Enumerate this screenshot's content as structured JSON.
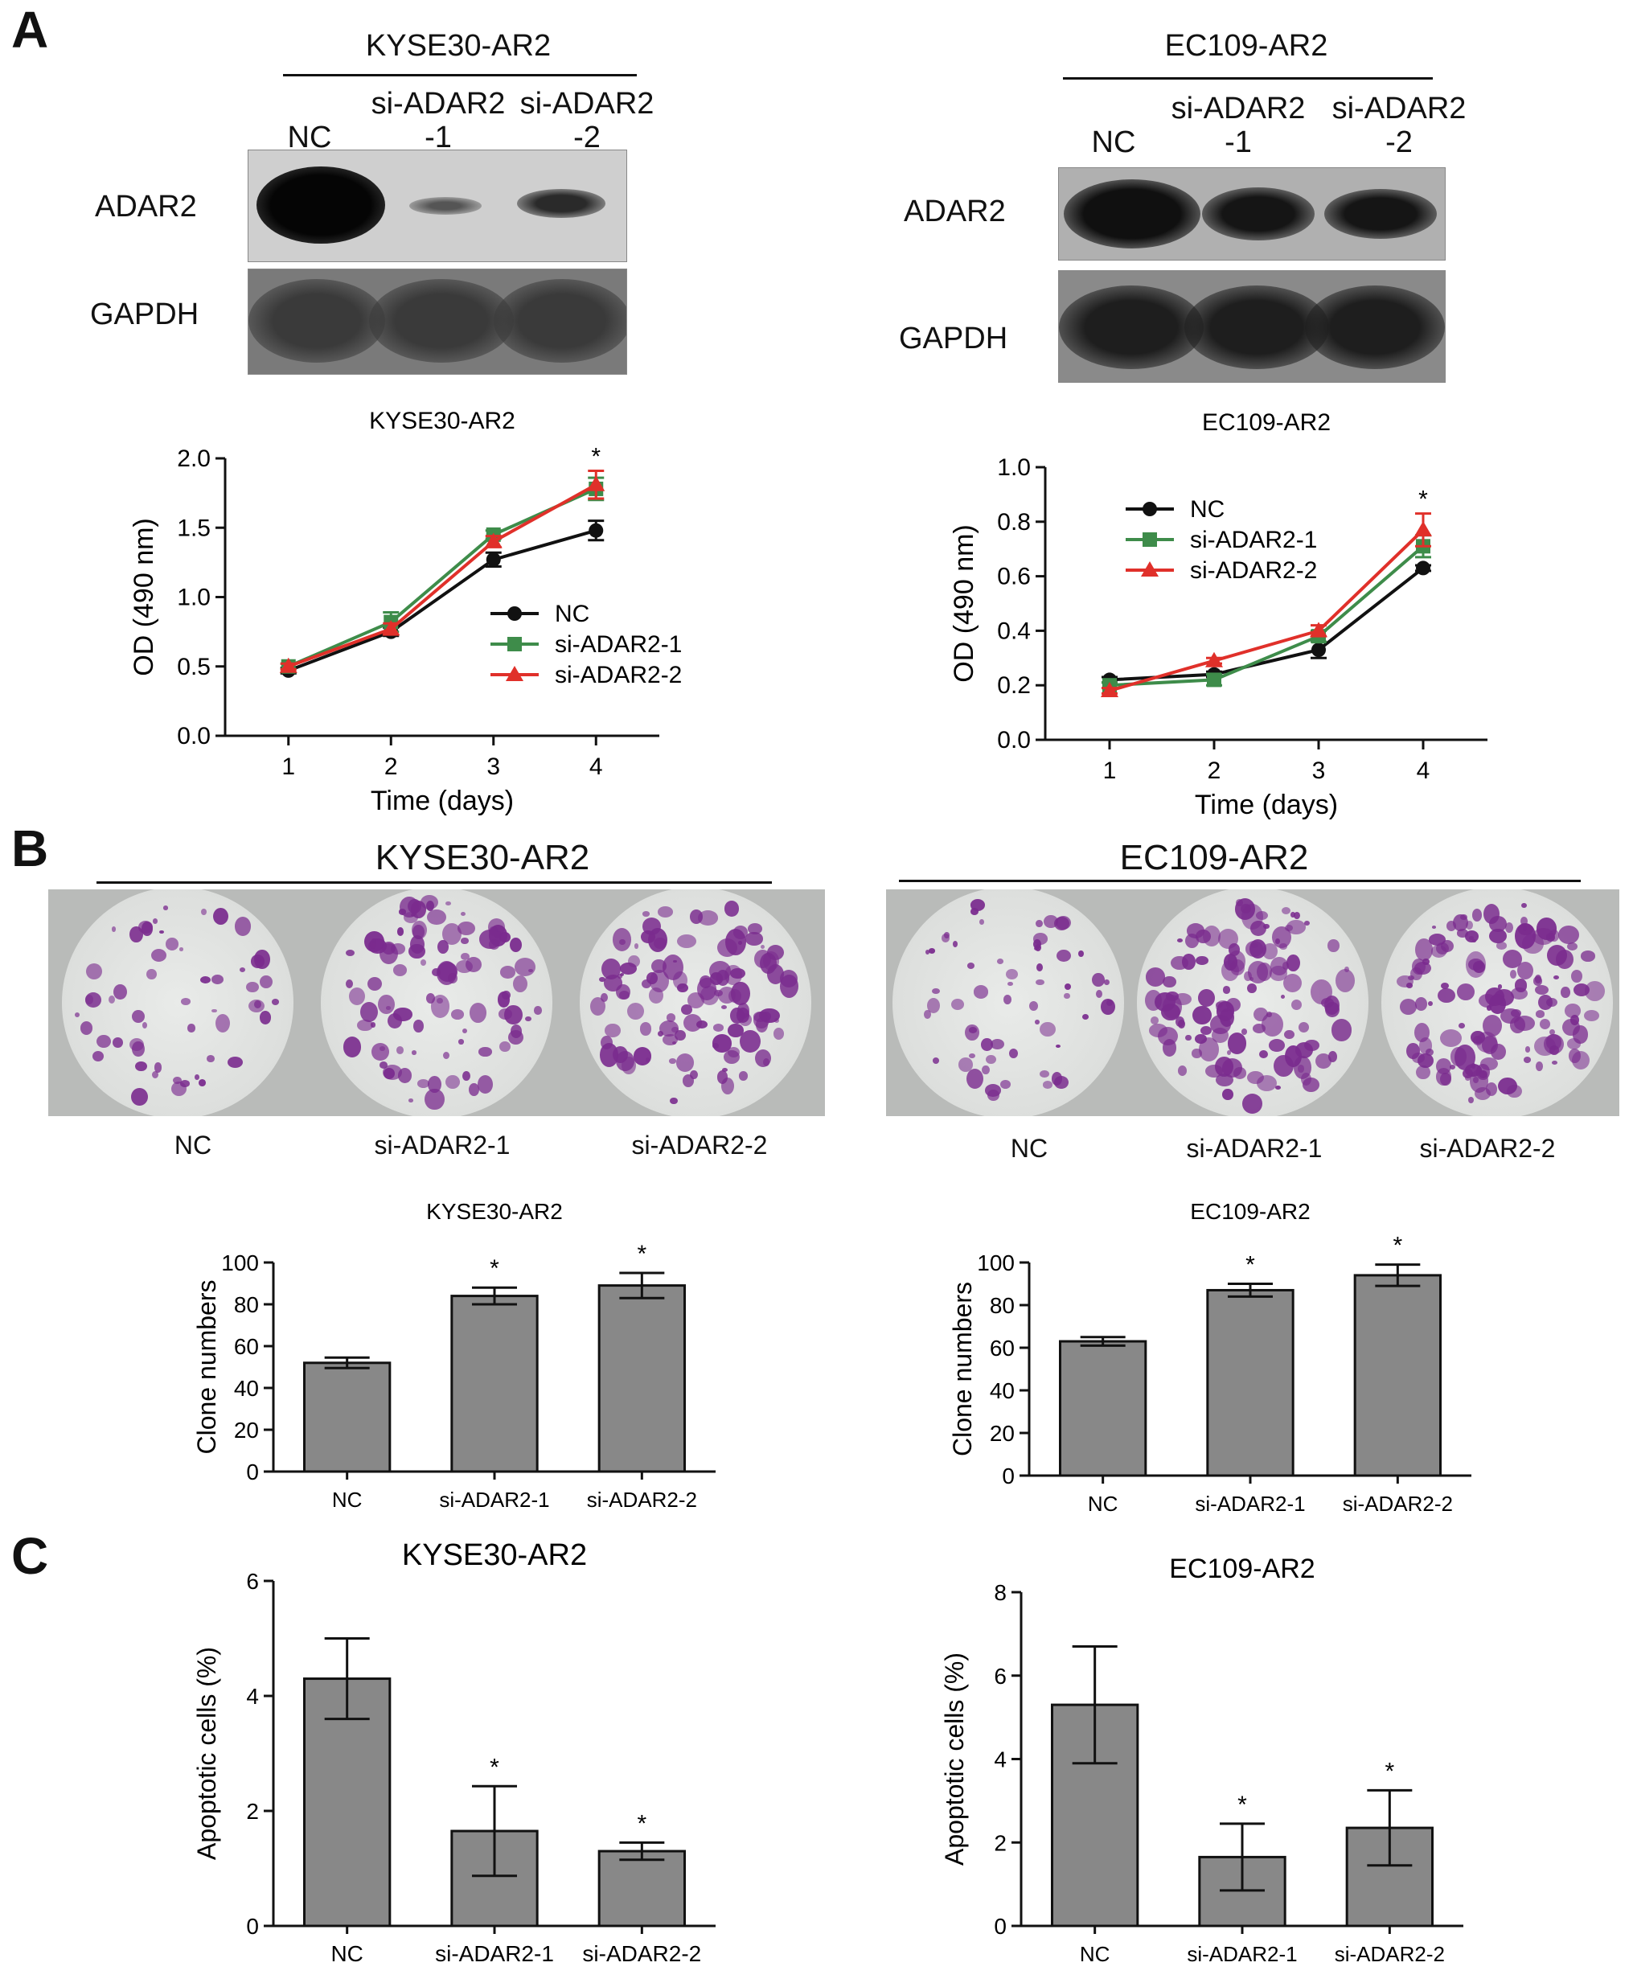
{
  "panels": {
    "A": "A",
    "B": "B",
    "C": "C"
  },
  "western_blots": [
    {
      "cell_line": "KYSE30-AR2",
      "lanes": [
        {
          "line1": "",
          "line2": "NC"
        },
        {
          "line1": "si-ADAR2",
          "line2": "-1"
        },
        {
          "line1": "si-ADAR2",
          "line2": "-2"
        }
      ],
      "rows": [
        "ADAR2",
        "GAPDH"
      ]
    },
    {
      "cell_line": "EC109-AR2",
      "lanes": [
        {
          "line1": "",
          "line2": "NC"
        },
        {
          "line1": "si-ADAR2",
          "line2": "-1"
        },
        {
          "line1": "si-ADAR2",
          "line2": "-2"
        }
      ],
      "rows": [
        "ADAR2",
        "GAPDH"
      ]
    }
  ],
  "colony_assays": [
    {
      "cell_line": "KYSE30-AR2",
      "labels": [
        "NC",
        "si-ADAR2-1",
        "si-ADAR2-2"
      ]
    },
    {
      "cell_line": "EC109-AR2",
      "labels": [
        "NC",
        "si-ADAR2-1",
        "si-ADAR2-2"
      ]
    }
  ],
  "chart_data": [
    {
      "type": "line",
      "title": "KYSE30-AR2",
      "xlabel": "Time (days)",
      "ylabel": "OD (490 nm)",
      "x": [
        1,
        2,
        3,
        4
      ],
      "xlim": [
        0.5,
        4.5
      ],
      "ylim": [
        0,
        2.0
      ],
      "yticks": [
        "0.0",
        "0.5",
        "1.0",
        "1.5",
        "2.0"
      ],
      "legend": "center-right",
      "series": [
        {
          "name": "NC",
          "color": "#111111",
          "marker": "circle",
          "values": [
            0.47,
            0.75,
            1.27,
            1.48
          ],
          "errors": [
            0.02,
            0.03,
            0.05,
            0.07
          ]
        },
        {
          "name": "si-ADAR2-1",
          "color": "#3e8c4a",
          "marker": "square",
          "values": [
            0.5,
            0.82,
            1.45,
            1.78
          ],
          "errors": [
            0.02,
            0.07,
            0.03,
            0.08
          ]
        },
        {
          "name": "si-ADAR2-2",
          "color": "#e0302a",
          "marker": "triangle",
          "values": [
            0.5,
            0.77,
            1.4,
            1.81
          ],
          "errors": [
            0.02,
            0.04,
            0.04,
            0.1
          ]
        }
      ],
      "annotations": [
        {
          "x": 4,
          "text": "*"
        }
      ]
    },
    {
      "type": "line",
      "title": "EC109-AR2",
      "xlabel": "Time (days)",
      "ylabel": "OD (490 nm)",
      "x": [
        1,
        2,
        3,
        4
      ],
      "xlim": [
        0.5,
        4.5
      ],
      "ylim": [
        0,
        1.0
      ],
      "yticks": [
        "0.0",
        "0.2",
        "0.4",
        "0.6",
        "0.8",
        "1.0"
      ],
      "legend": "top-left",
      "series": [
        {
          "name": "NC",
          "color": "#111111",
          "marker": "circle",
          "values": [
            0.22,
            0.24,
            0.33,
            0.63
          ],
          "errors": [
            0.01,
            0.01,
            0.03,
            0.01
          ]
        },
        {
          "name": "si-ADAR2-1",
          "color": "#3e8c4a",
          "marker": "square",
          "values": [
            0.2,
            0.22,
            0.38,
            0.71
          ],
          "errors": [
            0.01,
            0.02,
            0.02,
            0.04
          ]
        },
        {
          "name": "si-ADAR2-2",
          "color": "#e0302a",
          "marker": "triangle",
          "values": [
            0.18,
            0.29,
            0.4,
            0.77
          ],
          "errors": [
            0.01,
            0.01,
            0.02,
            0.06
          ]
        }
      ],
      "annotations": [
        {
          "x": 4,
          "text": "*"
        }
      ]
    },
    {
      "type": "bar",
      "title": "KYSE30-AR2",
      "ylabel": "Clone numbers",
      "categories": [
        "NC",
        "si-ADAR2-1",
        "si-ADAR2-2"
      ],
      "values": [
        52,
        84,
        89
      ],
      "errors": [
        2.5,
        4,
        6
      ],
      "significance": [
        "",
        "*",
        "*"
      ],
      "ylim": [
        0,
        100
      ],
      "yticks": [
        "0",
        "20",
        "40",
        "60",
        "80",
        "100"
      ],
      "color": "#888888"
    },
    {
      "type": "bar",
      "title": "EC109-AR2",
      "ylabel": "Clone numbers",
      "categories": [
        "NC",
        "si-ADAR2-1",
        "si-ADAR2-2"
      ],
      "values": [
        63,
        87,
        94
      ],
      "errors": [
        2,
        3,
        5
      ],
      "significance": [
        "",
        "*",
        "*"
      ],
      "ylim": [
        0,
        100
      ],
      "yticks": [
        "0",
        "20",
        "40",
        "60",
        "80",
        "100"
      ],
      "color": "#888888"
    },
    {
      "type": "bar",
      "title": "KYSE30-AR2",
      "ylabel": "Apoptotic cells (%)",
      "categories": [
        "NC",
        "si-ADAR2-1",
        "si-ADAR2-2"
      ],
      "values": [
        4.3,
        1.65,
        1.3
      ],
      "errors": [
        0.7,
        0.78,
        0.15
      ],
      "significance": [
        "",
        "*",
        "*"
      ],
      "ylim": [
        0,
        6
      ],
      "yticks": [
        "0",
        "2",
        "4",
        "6"
      ],
      "color": "#888888"
    },
    {
      "type": "bar",
      "title": "EC109-AR2",
      "ylabel": "Apoptotic cells (%)",
      "categories": [
        "NC",
        "si-ADAR2-1",
        "si-ADAR2-2"
      ],
      "values": [
        5.3,
        1.65,
        2.35
      ],
      "errors": [
        1.4,
        0.8,
        0.9
      ],
      "significance": [
        "",
        "*",
        "*"
      ],
      "ylim": [
        0,
        8
      ],
      "yticks": [
        "0",
        "2",
        "4",
        "6",
        "8"
      ],
      "color": "#888888"
    }
  ]
}
